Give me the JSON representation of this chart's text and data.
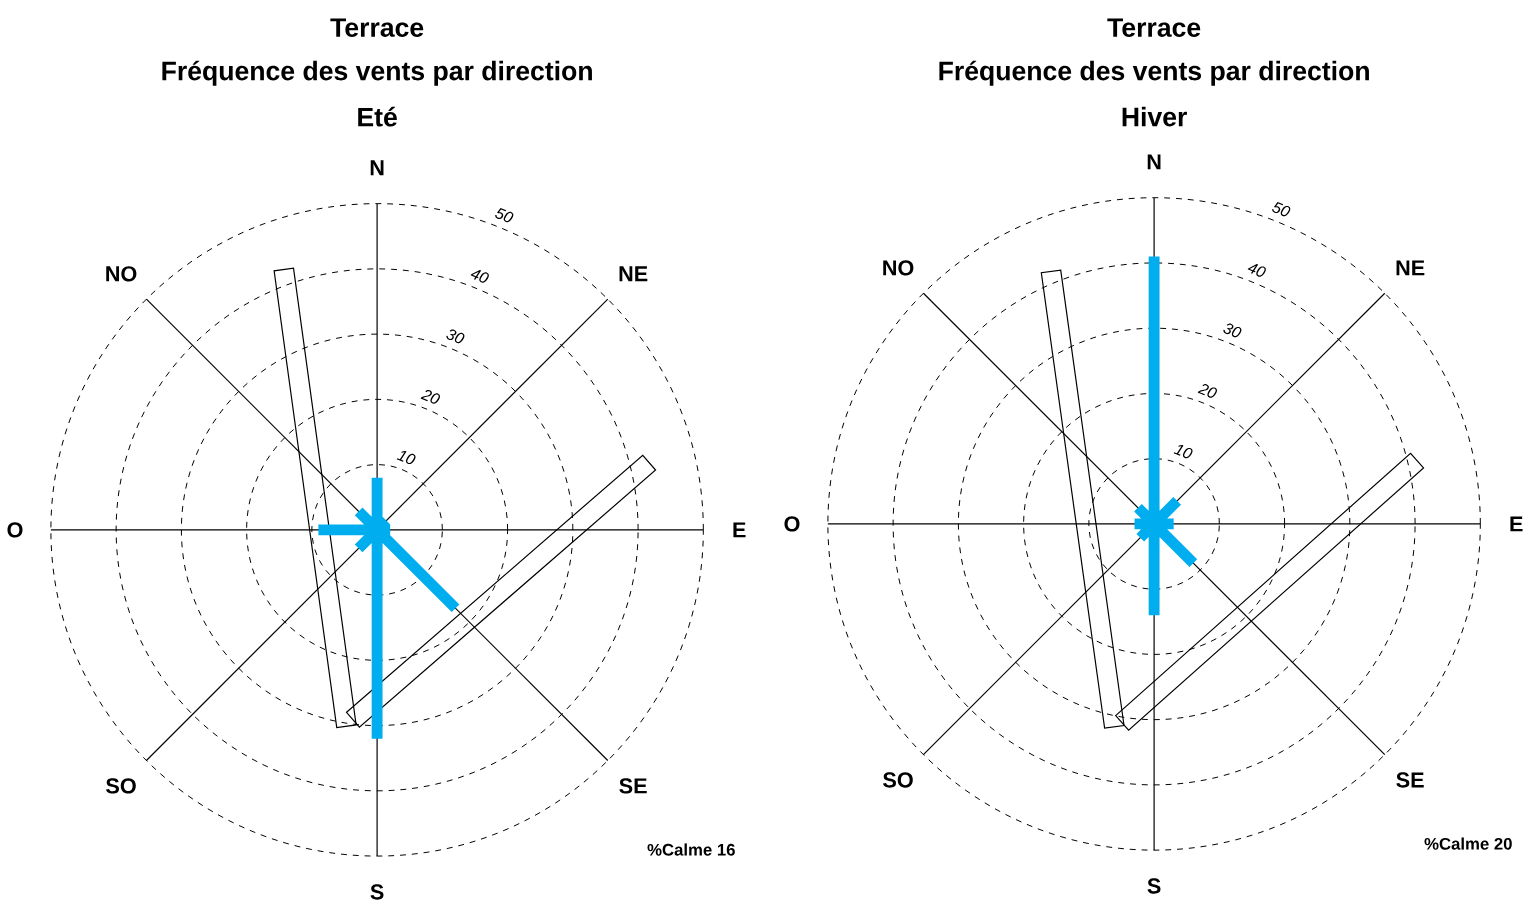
{
  "chart_data": [
    {
      "type": "radar",
      "title": "Terrace",
      "subtitle": "Fréquence des vents par direction",
      "annotations": [
        "Eté",
        "%Calme 16"
      ],
      "categories": [
        "N",
        "NE",
        "E",
        "SE",
        "S",
        "SO",
        "O",
        "NO"
      ],
      "ylim": [
        0,
        50
      ],
      "yticks": [
        10,
        20,
        30,
        40,
        50
      ],
      "grid": true,
      "series": [
        {
          "type": "bar",
          "color": "#00aeef",
          "values": [
            8,
            2,
            2,
            17,
            32,
            4,
            9,
            4
          ]
        }
      ]
    },
    {
      "type": "radar",
      "title": "Terrace",
      "subtitle": "Fréquence des vents par direction",
      "annotations": [
        "Hiver",
        "%Calme 20"
      ],
      "categories": [
        "N",
        "NE",
        "E",
        "SE",
        "S",
        "SO",
        "O",
        "NO"
      ],
      "ylim": [
        0,
        50
      ],
      "yticks": [
        10,
        20,
        30,
        40,
        50
      ],
      "grid": true,
      "series": [
        {
          "type": "bar",
          "color": "#00aeef",
          "values": [
            41,
            5,
            3,
            8.5,
            14,
            3,
            3,
            3.5
          ]
        }
      ]
    }
  ]
}
